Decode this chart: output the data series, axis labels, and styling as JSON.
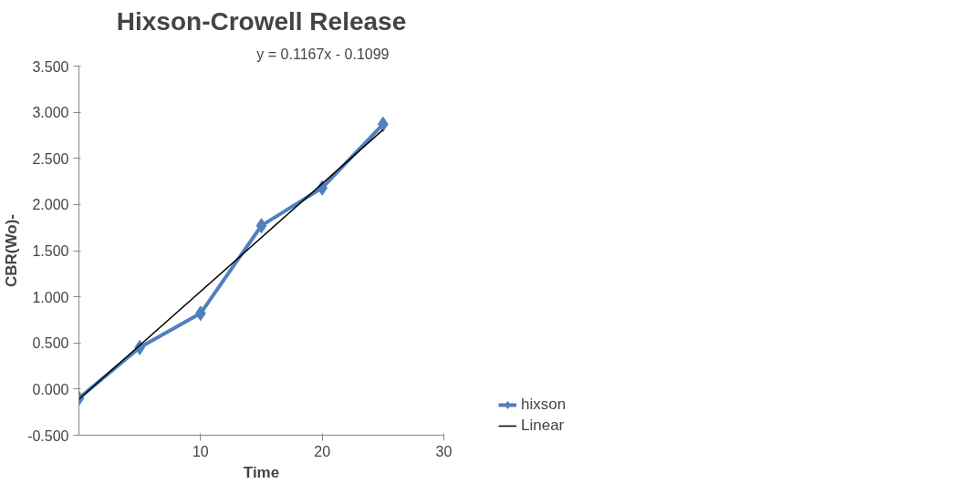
{
  "chart_data": {
    "type": "line",
    "title": "Hixson-Crowell Release",
    "xlabel": "Time",
    "ylabel": "CBR(Wo)-",
    "series": [
      {
        "name": "hixson",
        "color": "#4f81bd",
        "x": [
          0,
          5,
          10,
          15,
          20,
          25
        ],
        "values": [
          -0.1,
          0.45,
          0.82,
          1.77,
          2.18,
          2.87
        ],
        "marker": "diamond"
      },
      {
        "name": "Linear",
        "color": "#000000",
        "x": [
          0,
          25
        ],
        "values": [
          -0.11,
          2.81
        ],
        "marker": "none"
      }
    ],
    "annotations": [
      "y = 0.1167x - 0.1099"
    ],
    "xlim": [
      0,
      30
    ],
    "xticks": [
      10,
      20,
      30
    ],
    "ylim": [
      -0.5,
      3.5
    ],
    "yticks": [
      {
        "value": -0.5,
        "label": "-0.500"
      },
      {
        "value": 0,
        "label": "0.000"
      },
      {
        "value": 0.5,
        "label": "0.500"
      },
      {
        "value": 1,
        "label": "1.000"
      },
      {
        "value": 1.5,
        "label": "1.500"
      },
      {
        "value": 2,
        "label": "2.000"
      },
      {
        "value": 2.5,
        "label": "2.500"
      },
      {
        "value": 3,
        "label": "3.000"
      },
      {
        "value": 3.5,
        "label": "3.500"
      }
    ],
    "grid": false,
    "legend": "right"
  }
}
